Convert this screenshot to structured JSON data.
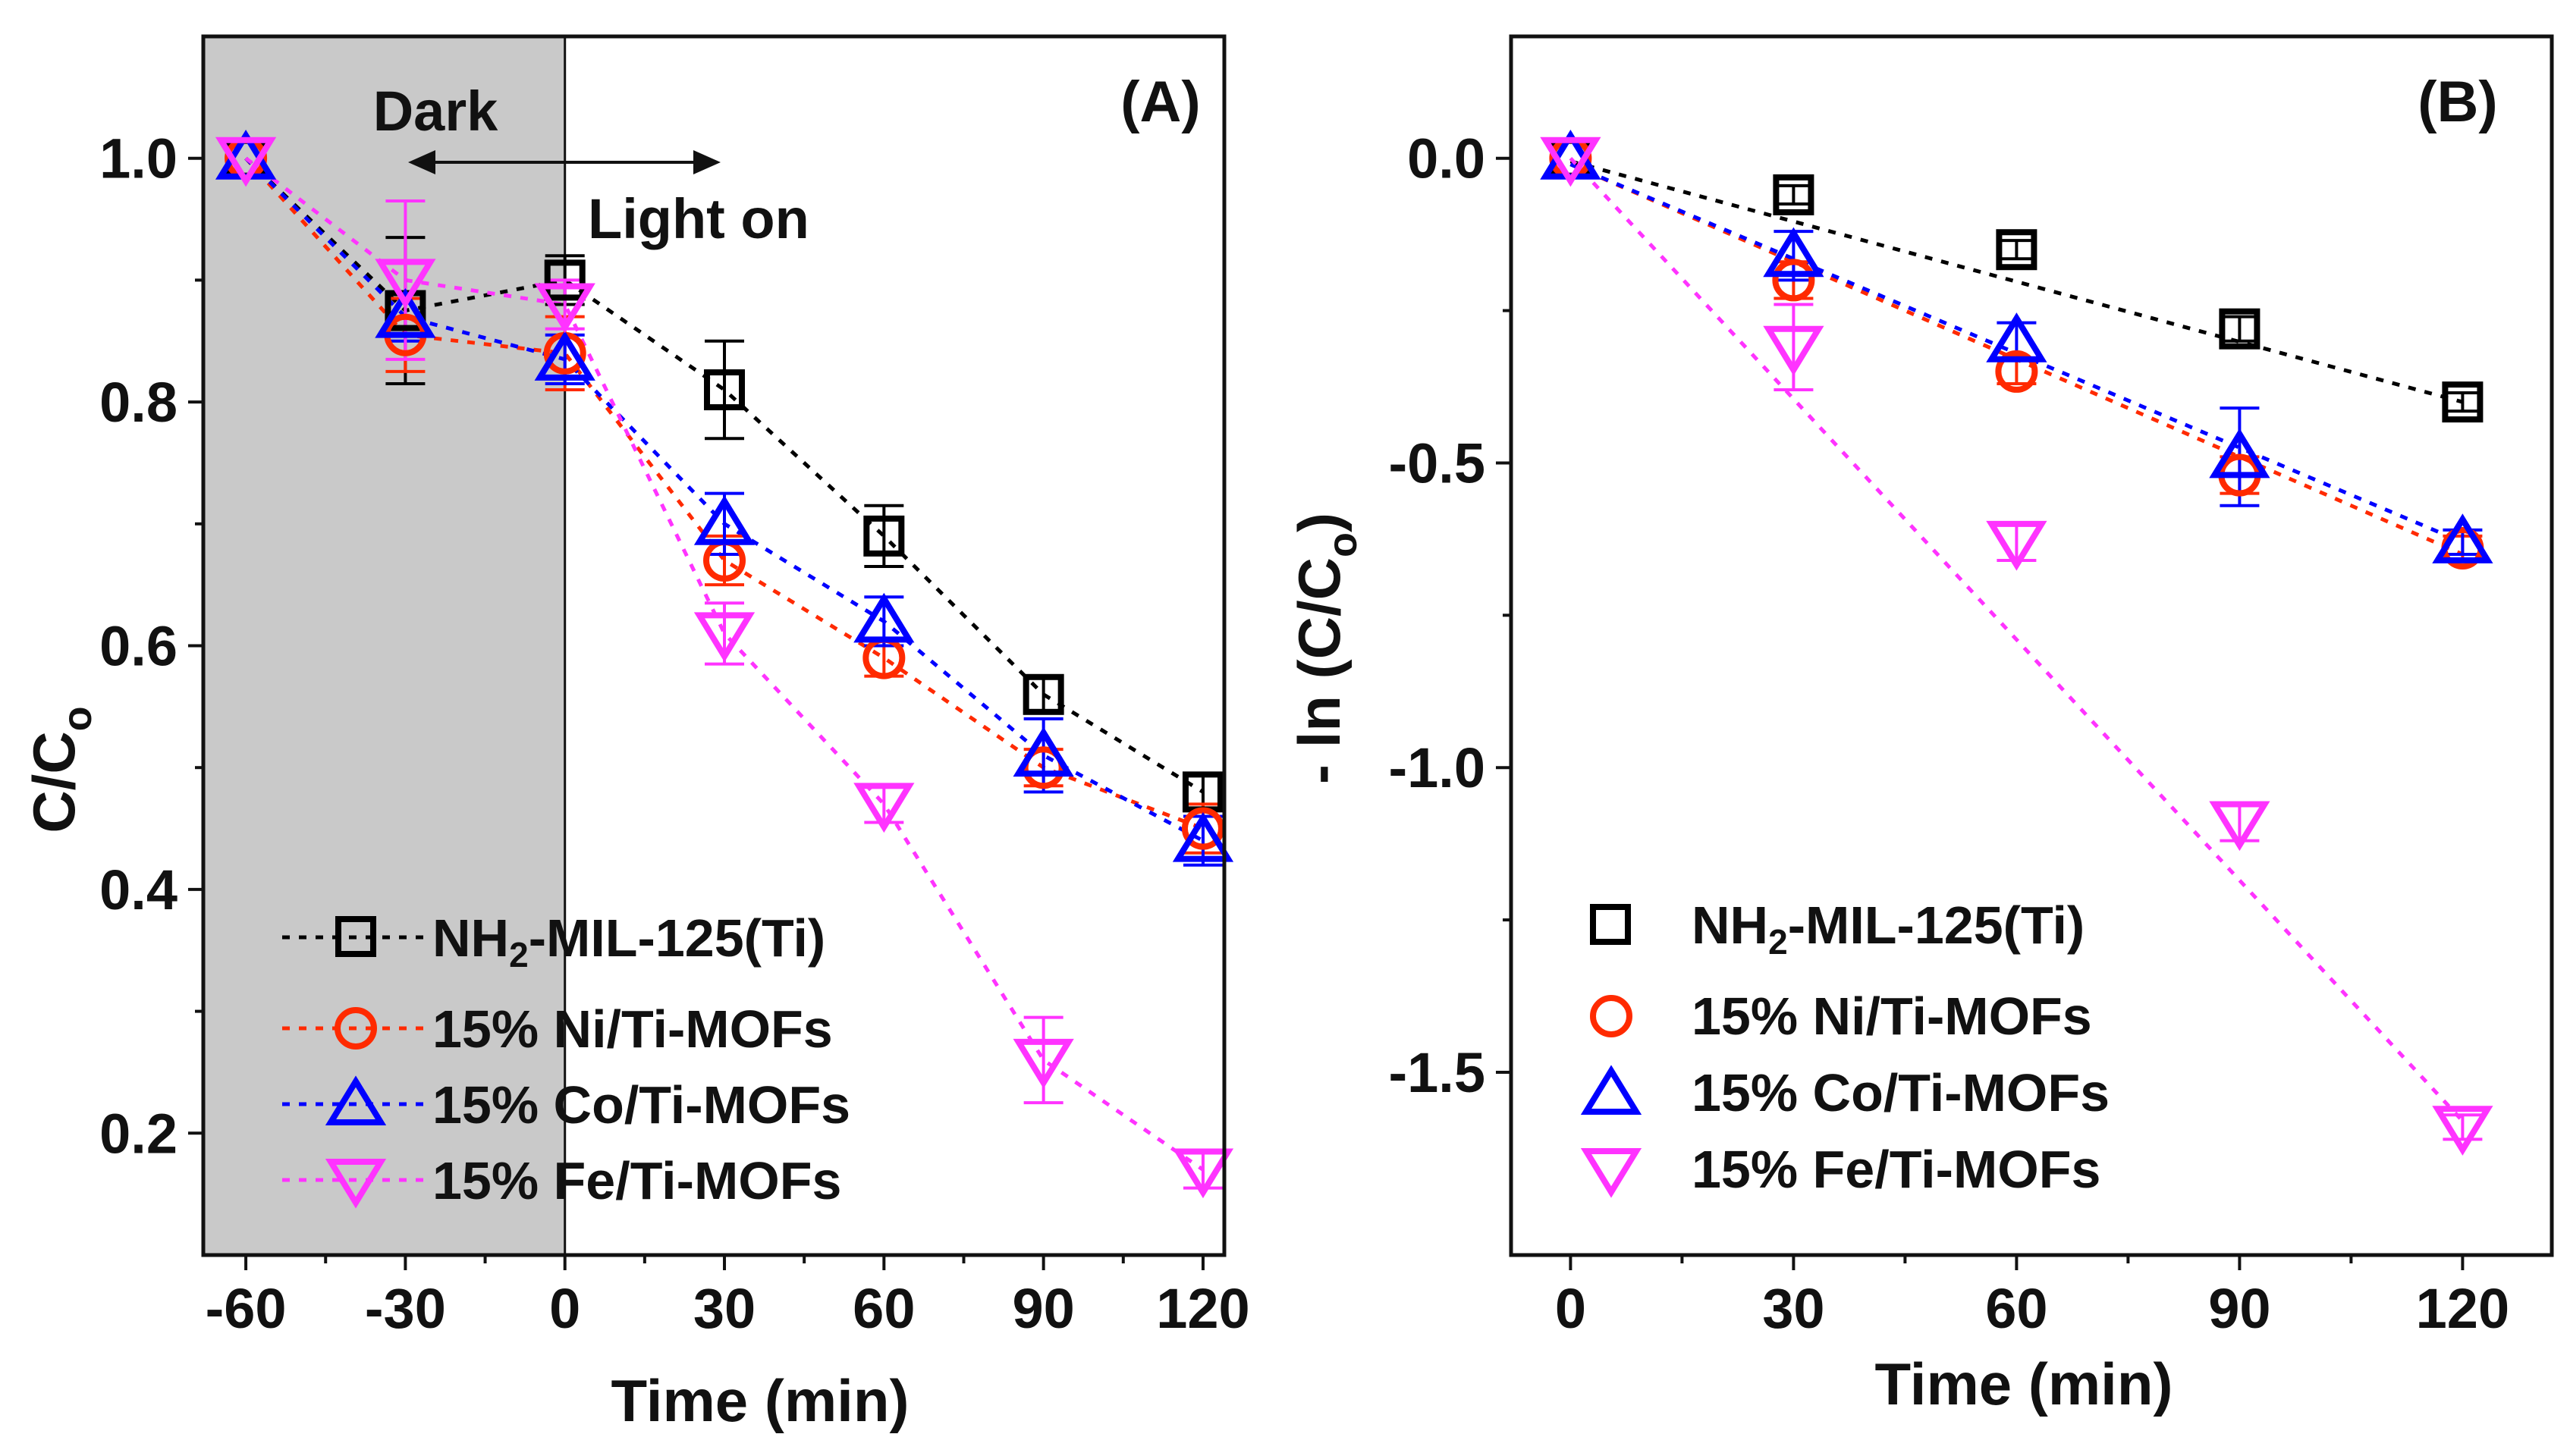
{
  "chart_data": [
    {
      "type": "line",
      "panel_label": "(A)",
      "xlabel": "Time (min)",
      "ylabel": "C/C",
      "ylabel_sub": "o",
      "x": [
        -60,
        -30,
        0,
        30,
        60,
        90,
        120
      ],
      "xticks": [
        "-60",
        "-30",
        "0",
        "30",
        "60",
        "90",
        "120"
      ],
      "yticks": [
        "0.2",
        "0.4",
        "0.6",
        "0.8",
        "1.0"
      ],
      "xlim": [
        -68,
        124
      ],
      "ylim": [
        0.1,
        1.1
      ],
      "dark_region": [
        -68,
        0
      ],
      "annotations": {
        "dark": "Dark",
        "light_on": "Light on"
      },
      "legend": {
        "placement": "bottom-left",
        "show_lines": true
      },
      "series": [
        {
          "name": "NH2-MIL-125(Ti)",
          "name_main": "NH",
          "name_sub": "2",
          "name_rest": "-MIL-125(Ti)",
          "marker": "square",
          "color": "#000000",
          "values": [
            1.0,
            0.875,
            0.9,
            0.81,
            0.69,
            0.56,
            0.48
          ],
          "errors": [
            0.0,
            0.06,
            0.02,
            0.04,
            0.025,
            0.015,
            0.015
          ]
        },
        {
          "name": "15% Ni/Ti-MOFs",
          "marker": "circle",
          "color": "#ff2a00",
          "values": [
            1.0,
            0.855,
            0.84,
            0.67,
            0.59,
            0.5,
            0.45
          ],
          "errors": [
            0.0,
            0.03,
            0.03,
            0.02,
            0.015,
            0.015,
            0.02
          ]
        },
        {
          "name": "15% Co/Ti-MOFs",
          "marker": "triangle-up",
          "color": "#0000ff",
          "values": [
            1.0,
            0.87,
            0.835,
            0.7,
            0.62,
            0.51,
            0.44
          ],
          "errors": [
            0.0,
            0.02,
            0.02,
            0.025,
            0.02,
            0.03,
            0.02
          ]
        },
        {
          "name": "15% Fe/Ti-MOFs",
          "marker": "triangle-down",
          "color": "#ff33ff",
          "values": [
            1.0,
            0.9,
            0.88,
            0.61,
            0.47,
            0.26,
            0.17
          ],
          "errors": [
            0.0,
            0.065,
            0.02,
            0.025,
            0.015,
            0.035,
            0.015
          ]
        }
      ]
    },
    {
      "type": "line",
      "panel_label": "(B)",
      "xlabel": "Time (min)",
      "ylabel": "- ln (C/C",
      "ylabel_sub": "o",
      "ylabel_end": ")",
      "x": [
        0,
        30,
        60,
        90,
        120
      ],
      "xticks": [
        "0",
        "30",
        "60",
        "90",
        "120"
      ],
      "yticks": [
        "0.0",
        "-0.5",
        "-1.0",
        "-1.5"
      ],
      "xlim": [
        -8,
        132
      ],
      "ylim": [
        -1.8,
        0.2
      ],
      "legend": {
        "placement": "bottom-left",
        "show_lines": false
      },
      "series": [
        {
          "name": "NH2-MIL-125(Ti)",
          "name_main": "NH",
          "name_sub": "2",
          "name_rest": "-MIL-125(Ti)",
          "marker": "square",
          "color": "#000000",
          "values": [
            0.0,
            -0.06,
            -0.15,
            -0.28,
            -0.4
          ],
          "fit": [
            -0.005,
            -0.4
          ],
          "errors": [
            0.0,
            0.015,
            0.015,
            0.02,
            0.015
          ]
        },
        {
          "name": "15% Ni/Ti-MOFs",
          "marker": "circle",
          "color": "#ff2a00",
          "values": [
            0.0,
            -0.2,
            -0.35,
            -0.52,
            -0.64
          ],
          "fit": [
            -0.01,
            -0.65
          ],
          "errors": [
            0.0,
            0.03,
            0.02,
            0.03,
            0.02
          ]
        },
        {
          "name": "15% Co/Ti-MOFs",
          "marker": "triangle-up",
          "color": "#0000ff",
          "values": [
            0.0,
            -0.16,
            -0.3,
            -0.49,
            -0.63
          ],
          "fit": [
            -0.01,
            -0.63
          ],
          "errors": [
            0.0,
            0.04,
            0.03,
            0.08,
            0.02
          ]
        },
        {
          "name": "15% Fe/Ti-MOFs",
          "marker": "triangle-down",
          "color": "#ff33ff",
          "values": [
            0.0,
            -0.31,
            -0.63,
            -1.09,
            -1.59
          ],
          "fit": [
            0.0,
            -1.58
          ],
          "errors": [
            0.0,
            0.07,
            0.03,
            0.03,
            0.02
          ]
        }
      ]
    }
  ]
}
